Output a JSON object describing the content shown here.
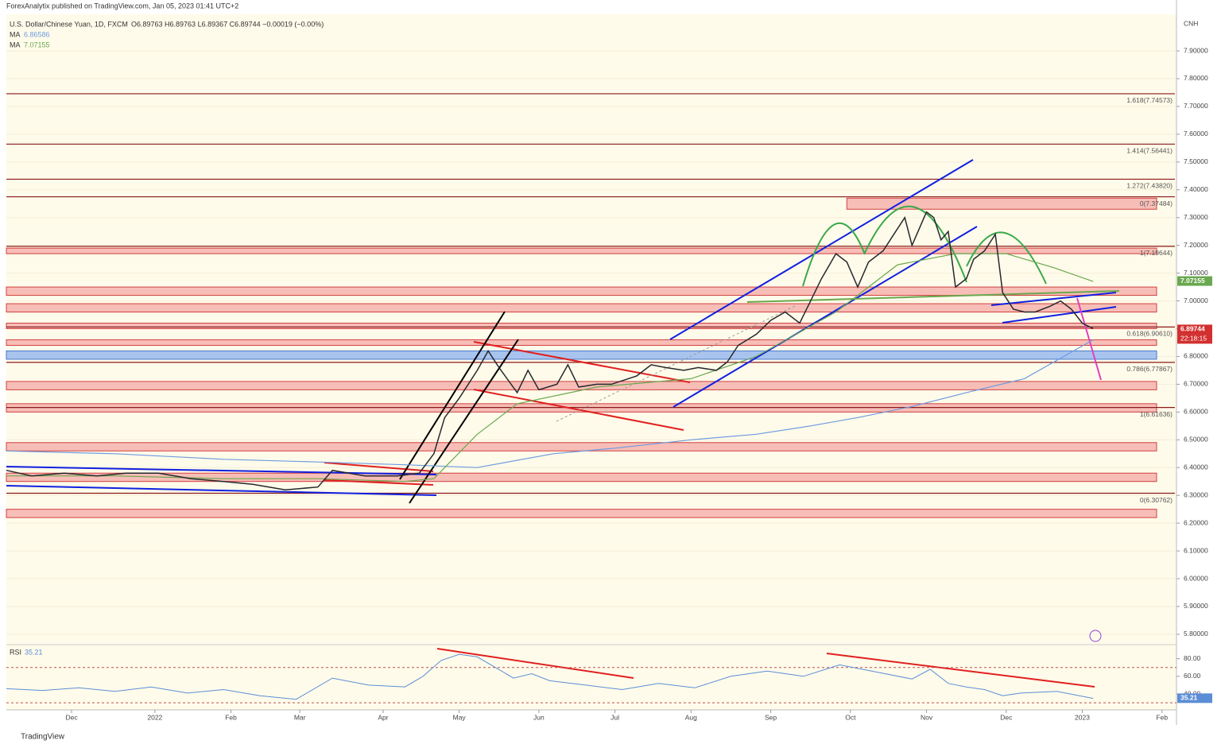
{
  "chart_data": {
    "type": "line",
    "source": "ForexAnalytix published on TradingView.com, Jan 05, 2023 01:41 UTC+2",
    "title": "U.S. Dollar/Chinese Yuan, 1D, FXCM",
    "ohlc": "O6.89763 H6.89763 L6.89367 C6.89744 −0.00019 (−0.00%)",
    "currency": "CNH",
    "last": 6.89744,
    "countdown": "22:18:15",
    "logo": "TradingView",
    "xlim": [
      0,
      323
    ],
    "xticks": [
      {
        "value": 18,
        "label": "Dec"
      },
      {
        "value": 41,
        "label": "2022"
      },
      {
        "value": 62,
        "label": "Feb"
      },
      {
        "value": 81,
        "label": "Mar"
      },
      {
        "value": 104,
        "label": "Apr"
      },
      {
        "value": 125,
        "label": "May"
      },
      {
        "value": 147,
        "label": "Jun"
      },
      {
        "value": 168,
        "label": "Jul"
      },
      {
        "value": 189,
        "label": "Aug"
      },
      {
        "value": 211,
        "label": "Sep"
      },
      {
        "value": 233,
        "label": "Oct"
      },
      {
        "value": 254,
        "label": "Nov"
      },
      {
        "value": 276,
        "label": "Dec"
      },
      {
        "value": 297,
        "label": "2023"
      },
      {
        "value": 319,
        "label": "Feb"
      }
    ],
    "ylim": [
      5.77,
      8.03
    ],
    "yticks": [
      {
        "value": 5.8,
        "label": "5.80000"
      },
      {
        "value": 5.9,
        "label": "5.90000"
      },
      {
        "value": 6.0,
        "label": "6.00000"
      },
      {
        "value": 6.1,
        "label": "6.10000"
      },
      {
        "value": 6.2,
        "label": "6.20000"
      },
      {
        "value": 6.3,
        "label": "6.30000"
      },
      {
        "value": 6.4,
        "label": "6.40000"
      },
      {
        "value": 6.5,
        "label": "6.50000"
      },
      {
        "value": 6.6,
        "label": "6.60000"
      },
      {
        "value": 6.7,
        "label": "6.70000"
      },
      {
        "value": 6.8,
        "label": "6.80000"
      },
      {
        "value": 6.9,
        "label": "6.90000"
      },
      {
        "value": 7.0,
        "label": "7.00000"
      },
      {
        "value": 7.1,
        "label": "7.10000"
      },
      {
        "value": 7.2,
        "label": "7.20000"
      },
      {
        "value": 7.3,
        "label": "7.30000"
      },
      {
        "value": 7.4,
        "label": "7.40000"
      },
      {
        "value": 7.5,
        "label": "7.50000"
      },
      {
        "value": 7.6,
        "label": "7.60000"
      },
      {
        "value": 7.7,
        "label": "7.70000"
      },
      {
        "value": 7.8,
        "label": "7.80000"
      },
      {
        "value": 7.9,
        "label": "7.90000"
      }
    ],
    "price": {
      "color": "#26282e",
      "x": [
        0,
        7,
        16,
        25,
        33,
        42,
        51,
        60,
        68,
        77,
        86,
        90,
        99,
        108,
        114,
        118,
        121,
        125,
        130,
        133,
        136,
        141,
        144,
        147,
        152,
        155,
        158,
        163,
        167,
        174,
        178,
        182,
        187,
        191,
        196,
        199,
        202,
        207,
        211,
        215,
        219,
        222,
        225,
        229,
        232,
        235,
        238,
        242,
        245,
        248,
        250,
        254,
        256,
        258,
        260,
        262,
        265,
        267,
        270,
        273,
        275,
        278,
        281,
        284,
        288,
        291,
        294,
        297,
        300
      ],
      "values": [
        6.39,
        6.37,
        6.38,
        6.37,
        6.38,
        6.38,
        6.36,
        6.35,
        6.34,
        6.32,
        6.33,
        6.39,
        6.37,
        6.37,
        6.38,
        6.45,
        6.58,
        6.65,
        6.75,
        6.82,
        6.76,
        6.67,
        6.75,
        6.68,
        6.7,
        6.77,
        6.69,
        6.7,
        6.7,
        6.73,
        6.77,
        6.76,
        6.75,
        6.76,
        6.75,
        6.78,
        6.84,
        6.88,
        6.93,
        6.96,
        6.92,
        7.0,
        7.08,
        7.17,
        7.14,
        7.05,
        7.14,
        7.18,
        7.24,
        7.3,
        7.2,
        7.32,
        7.3,
        7.22,
        7.25,
        7.05,
        7.08,
        7.15,
        7.18,
        7.24,
        7.03,
        6.97,
        6.96,
        6.96,
        6.98,
        7.0,
        6.97,
        6.92,
        6.9
      ]
    },
    "series": [
      {
        "name": "MA",
        "color": "#6e9be0",
        "last": 6.86586,
        "x": [
          0,
          30,
          60,
          86,
          110,
          130,
          151,
          168,
          189,
          207,
          222,
          235,
          250,
          265,
          281,
          300
        ],
        "values": [
          6.46,
          6.45,
          6.43,
          6.42,
          6.41,
          6.4,
          6.45,
          6.47,
          6.5,
          6.52,
          6.55,
          6.58,
          6.62,
          6.67,
          6.72,
          6.86
        ]
      },
      {
        "name": "MA",
        "color": "#6aa84f",
        "last": 7.07155,
        "x": [
          0,
          30,
          60,
          86,
          110,
          118,
          130,
          141,
          163,
          189,
          207,
          229,
          246,
          262,
          276,
          289,
          300
        ],
        "values": [
          6.37,
          6.37,
          6.36,
          6.36,
          6.35,
          6.36,
          6.52,
          6.63,
          6.69,
          6.72,
          6.8,
          6.96,
          7.13,
          7.17,
          7.17,
          7.12,
          7.07
        ]
      }
    ],
    "zones": [
      {
        "lo": 7.33,
        "hi": 7.37,
        "start": 232
      },
      {
        "lo": 7.17,
        "hi": 7.19
      },
      {
        "lo": 7.02,
        "hi": 7.05
      },
      {
        "lo": 6.96,
        "hi": 6.99
      },
      {
        "lo": 6.9,
        "hi": 6.92
      },
      {
        "lo": 6.84,
        "hi": 6.86
      },
      {
        "lo": 6.68,
        "hi": 6.71
      },
      {
        "lo": 6.6,
        "hi": 6.63
      },
      {
        "lo": 6.46,
        "hi": 6.49
      },
      {
        "lo": 6.35,
        "hi": 6.38
      },
      {
        "lo": 6.22,
        "hi": 6.25
      }
    ],
    "zone_color": "#f4a9a5",
    "support_zone": {
      "lo": 6.79,
      "hi": 6.82,
      "color": "#a8c4ee"
    },
    "fib": [
      {
        "label": "1.618(7.74573)",
        "value": 7.74573
      },
      {
        "label": "1.414(7.56441)",
        "value": 7.56441
      },
      {
        "label": "1.272(7.43820)",
        "value": 7.4382
      },
      {
        "label": "0(7.37484)",
        "value": 7.37484
      },
      {
        "label": "1(7.19644)",
        "value": 7.19644
      },
      {
        "label": "0.618(6.90610)",
        "value": 6.9061
      },
      {
        "label": "0.786(6.77867)",
        "value": 6.77867
      },
      {
        "label": "1(6.61636)",
        "value": 6.61636
      },
      {
        "label": "0(6.30762)",
        "value": 6.30762
      }
    ],
    "fib_color": "#8b1a1a",
    "rsi": {
      "name": "RSI",
      "last": 35.21,
      "color": "#5b8ed6",
      "ylim": [
        22,
        95
      ],
      "yticks": [
        {
          "value": 40,
          "label": "40.00"
        },
        {
          "value": 60,
          "label": "60.00"
        },
        {
          "value": 80,
          "label": "80.00"
        }
      ],
      "bands": [
        70,
        30
      ],
      "x": [
        0,
        10,
        20,
        30,
        40,
        50,
        60,
        70,
        80,
        90,
        100,
        110,
        115,
        120,
        125,
        130,
        135,
        140,
        145,
        150,
        160,
        170,
        180,
        190,
        200,
        210,
        220,
        230,
        240,
        250,
        255,
        260,
        265,
        270,
        275,
        280,
        290,
        300
      ],
      "values": [
        46,
        44,
        47,
        43,
        48,
        41,
        45,
        38,
        34,
        58,
        50,
        48,
        60,
        78,
        85,
        82,
        70,
        58,
        63,
        55,
        50,
        45,
        52,
        47,
        60,
        66,
        60,
        73,
        65,
        57,
        68,
        52,
        48,
        45,
        38,
        41,
        43,
        35
      ]
    }
  }
}
